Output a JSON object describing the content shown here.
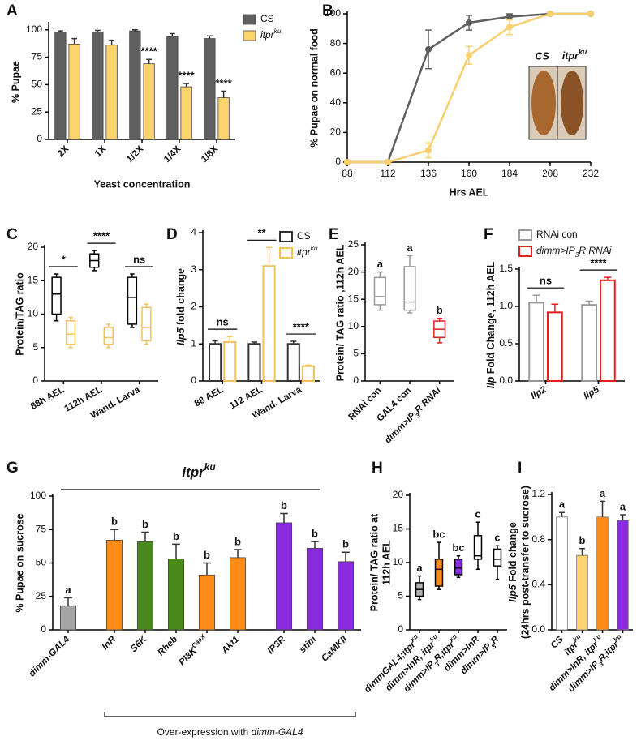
{
  "chart_data": [
    {
      "type": "bar",
      "panel": "A",
      "ylabel": [
        "% Pupae"
      ],
      "xlabel": "Yeast concentration",
      "categories": [
        "2X",
        "1X",
        "1/2X",
        "1/4X",
        "1/8X"
      ],
      "series": [
        {
          "name": "CS",
          "color": "#5f5f5f",
          "values": [
            98,
            98,
            99,
            94,
            92
          ],
          "errors": [
            1,
            1.5,
            1,
            2.5,
            2.5
          ]
        },
        {
          "name": [
            {
              "text": "itpr",
              "italic": true
            },
            {
              "text": "ku",
              "italic": true,
              "sup": true
            }
          ],
          "color": "#fbd46d",
          "values": [
            87,
            86,
            69,
            48,
            38
          ],
          "errors": [
            5,
            4.5,
            4,
            3,
            6
          ]
        }
      ],
      "sig_labels": [
        null,
        null,
        "****",
        "****",
        "****"
      ],
      "ylim": [
        0,
        105
      ],
      "yticks": [
        0,
        25,
        50,
        75,
        100
      ],
      "bar_style": "filled",
      "legend": "top-right"
    },
    {
      "type": "line",
      "panel": "B",
      "ylabel": [
        "% Pupae on normal food"
      ],
      "xlabel": "Hrs AEL",
      "x": [
        88,
        112,
        136,
        160,
        184,
        208,
        232
      ],
      "series": [
        {
          "color": "#5f5f5f",
          "values": [
            0,
            0,
            76,
            94,
            98,
            100,
            100
          ],
          "errors": [
            0,
            0,
            13,
            5,
            2,
            1,
            0
          ]
        },
        {
          "color": "#f8d070",
          "values": [
            0,
            0,
            8,
            72,
            91,
            100,
            100
          ],
          "errors": [
            0,
            0,
            5,
            6,
            5,
            1,
            0
          ]
        }
      ],
      "xlim": [
        88,
        232
      ],
      "xticks": [
        88,
        112,
        136,
        160,
        184,
        208,
        232
      ],
      "ylim": [
        0,
        100
      ],
      "yticks": [
        0,
        20,
        40,
        60,
        80,
        100
      ],
      "inset_labels": [
        "CS",
        [
          {
            "text": "itpr",
            "italic": true
          },
          {
            "text": "ku",
            "italic": true,
            "sup": true
          }
        ]
      ]
    },
    {
      "type": "box",
      "panel": "C",
      "ylabel": [
        "Protein/TAG ratio"
      ],
      "categories": [
        "88h AEL",
        "112h AEL",
        "Wand. Larva"
      ],
      "series": [
        {
          "color": "#000000",
          "boxes": [
            [
              9,
              10,
              13,
              15.5,
              16
            ],
            [
              16.5,
              17,
              18,
              19,
              19.5
            ],
            [
              8,
              8.5,
              12.5,
              15.5,
              16
            ]
          ]
        },
        {
          "color": "#f5c25e",
          "boxes": [
            [
              5,
              5.5,
              7,
              9,
              9.5
            ],
            [
              5,
              5.5,
              6.5,
              8,
              8.5
            ],
            [
              5.5,
              6,
              8,
              11,
              11.5
            ]
          ]
        }
      ],
      "sig_labels": [
        "*",
        "****",
        "ns"
      ],
      "sig_line": true,
      "ylim": [
        0,
        20
      ],
      "yticks": [
        0,
        5,
        10,
        15,
        20
      ]
    },
    {
      "type": "bar",
      "panel": "D",
      "ylabel": [
        [
          {
            "text": "Ilp5",
            "italic": true
          },
          {
            "text": " fold change"
          }
        ]
      ],
      "categories": [
        "88 AEL",
        "112 AEL",
        "Wand. Larva"
      ],
      "series": [
        {
          "name": "CS",
          "color": "#333333",
          "values": [
            1,
            1,
            1
          ],
          "errors": [
            0.08,
            0.05,
            0.07
          ]
        },
        {
          "name": [
            {
              "text": "itpr",
              "italic": true
            },
            {
              "text": "ku",
              "italic": true,
              "sup": true
            }
          ],
          "color": "#f5c060",
          "values": [
            1.05,
            3.1,
            0.4
          ],
          "errors": [
            0.15,
            0.5,
            0.03
          ]
        }
      ],
      "sig_labels": [
        "ns",
        "**",
        "****"
      ],
      "sig_line": true,
      "ylim": [
        0,
        4
      ],
      "yticks": [
        0,
        1,
        2,
        3,
        4
      ],
      "bar_style": "outline",
      "legend": "top-right"
    },
    {
      "type": "box",
      "panel": "E",
      "ylabel": [
        "Protein/ TAG ratio ,112h AEL"
      ],
      "categories": [
        "RNAi con",
        "GAL4 con",
        [
          {
            "text": "dimm>IP",
            "italic": true
          },
          {
            "text": "3",
            "italic": true,
            "sub": true
          },
          {
            "text": "R RNAi",
            "italic": true
          }
        ]
      ],
      "series": [
        {
          "colors": [
            "#999999",
            "#999999",
            "#e3201b"
          ],
          "boxes": [
            [
              13,
              14,
              15.5,
              19,
              20
            ],
            [
              12.5,
              13,
              14.5,
              21,
              23
            ],
            [
              7,
              8,
              9.5,
              11,
              11.5
            ]
          ]
        }
      ],
      "sig_labels": [
        "a",
        "a",
        "b"
      ],
      "ylim": [
        0,
        25
      ],
      "yticks": [
        0,
        5,
        10,
        15,
        20,
        25
      ]
    },
    {
      "type": "bar",
      "panel": "F",
      "ylabel": [
        [
          {
            "text": "Ilp",
            "italic": true
          },
          {
            "text": " Fold Change, 112h AEL"
          }
        ]
      ],
      "categories": [
        [
          {
            "text": "Ilp2",
            "italic": true
          }
        ],
        [
          {
            "text": "Ilp5",
            "italic": true
          }
        ]
      ],
      "series": [
        {
          "name": "RNAi con",
          "color": "#9a9a9a",
          "values": [
            1.05,
            1.02
          ],
          "errors": [
            0.1,
            0.05
          ]
        },
        {
          "name": [
            {
              "text": "dimm>IP",
              "italic": true
            },
            {
              "text": "3",
              "italic": true,
              "sub": true
            },
            {
              "text": "R RNAi",
              "italic": true
            }
          ],
          "color": "#e3201b",
          "values": [
            0.92,
            1.35
          ],
          "errors": [
            0.11,
            0.04
          ]
        }
      ],
      "sig_labels": [
        "ns",
        "****"
      ],
      "sig_line": true,
      "ylim": [
        0,
        1.5
      ],
      "yticks": [
        {
          "value": 0,
          "label": "0.0"
        },
        {
          "value": 0.5,
          "label": "0.5"
        },
        {
          "value": 1,
          "label": "1.0"
        },
        {
          "value": 1.5,
          "label": "1.5"
        }
      ],
      "bar_style": "outline",
      "legend": "top"
    },
    {
      "type": "bar",
      "panel": "G",
      "ylabel": [
        "% Pupae on sucrose"
      ],
      "group_title": [
        {
          "text": "itpr",
          "italic": true
        },
        {
          "text": "ku",
          "italic": true,
          "sup": true
        }
      ],
      "xnote": [
        {
          "text": "Over-expression with "
        },
        {
          "text": "dimm-GAL4",
          "italic": true
        }
      ],
      "categories": [
        [
          {
            "text": "dimm-GAL4",
            "italic": true
          }
        ],
        [
          {
            "text": "InR",
            "italic": true
          }
        ],
        [
          {
            "text": "S6K",
            "italic": true
          }
        ],
        [
          {
            "text": "Rheb",
            "italic": true
          }
        ],
        [
          {
            "text": "PI3K",
            "italic": true
          },
          {
            "text": "CaaX",
            "italic": true,
            "sup": true
          }
        ],
        [
          {
            "text": "Akt1",
            "italic": true
          }
        ],
        [
          {
            "text": "IP3R",
            "italic": true
          }
        ],
        [
          {
            "text": "stim",
            "italic": true
          }
        ],
        [
          {
            "text": "CaMKII",
            "italic": true
          }
        ]
      ],
      "series": [
        {
          "colors": [
            "#a6a6a6",
            "#ff8c1a",
            "#4a8a1c",
            "#4a8a1c",
            "#ff8c1a",
            "#ff8c1a",
            "#8a2be2",
            "#8a2be2",
            "#8a2be2"
          ],
          "values": [
            18,
            67,
            66,
            53,
            41,
            54,
            80,
            61,
            51
          ],
          "errors": [
            6,
            8,
            7,
            11,
            9,
            6,
            7,
            5,
            7
          ]
        }
      ],
      "sig_labels": [
        "a",
        "b",
        "b",
        "b",
        "b",
        "b",
        "b",
        "b",
        "b"
      ],
      "ylim": [
        0,
        100
      ],
      "yticks": [
        0,
        25,
        50,
        75,
        100
      ],
      "bar_style": "filled"
    },
    {
      "type": "box",
      "panel": "H",
      "ylabel": [
        "Protein/ TAG ratio at",
        "112h AEL"
      ],
      "categories": [
        [
          {
            "text": "dimmGAL4;itpr",
            "italic": true
          },
          {
            "text": "ku",
            "italic": true,
            "sup": true
          }
        ],
        [
          {
            "text": "dimm>InR, itpr",
            "italic": true
          },
          {
            "text": "ku",
            "italic": true,
            "sup": true
          }
        ],
        [
          {
            "text": "dimm>IP",
            "italic": true
          },
          {
            "text": "3",
            "italic": true,
            "sub": true
          },
          {
            "text": "R,itpr",
            "italic": true
          },
          {
            "text": "ku",
            "italic": true,
            "sup": true
          }
        ],
        [
          {
            "text": "dimm>InR",
            "italic": true
          }
        ],
        [
          {
            "text": "dimm>IP",
            "italic": true
          },
          {
            "text": "3",
            "italic": true,
            "sub": true
          },
          {
            "text": "R",
            "italic": true
          }
        ]
      ],
      "series": [
        {
          "color": "#000000",
          "fills": [
            "#b3b3b3",
            "#ff8c1a",
            "#8a2be2",
            "#ffffff",
            "#ffffff"
          ],
          "boxes": [
            [
              4.5,
              5,
              6,
              7,
              8
            ],
            [
              6,
              6.5,
              9,
              10.5,
              13
            ],
            [
              7.8,
              8.2,
              9.2,
              10.5,
              11
            ],
            [
              9,
              10.5,
              11,
              14,
              16
            ],
            [
              7.5,
              9.5,
              10.5,
              12,
              12.5
            ]
          ]
        }
      ],
      "sig_labels": [
        "a",
        "bc",
        "bc",
        "c",
        "c"
      ],
      "ylim": [
        0,
        20
      ],
      "yticks": [
        0,
        5,
        10,
        15,
        20
      ]
    },
    {
      "type": "bar",
      "panel": "I",
      "ylabel": [
        [
          {
            "text": "Ilp5",
            "italic": true
          },
          {
            "text": " Fold change"
          }
        ],
        "(24hrs post-transfer to sucrose)"
      ],
      "categories": [
        "CS",
        [
          {
            "text": "itpr",
            "italic": true
          },
          {
            "text": "ku",
            "italic": true,
            "sup": true
          }
        ],
        [
          {
            "text": "dimm>InR, itpr",
            "italic": true
          },
          {
            "text": "ku",
            "italic": true,
            "sup": true
          }
        ],
        [
          {
            "text": "dimm>IP",
            "italic": true
          },
          {
            "text": "3",
            "italic": true,
            "sub": true
          },
          {
            "text": "R,itpr",
            "italic": true
          },
          {
            "text": "ku",
            "italic": true,
            "sup": true
          }
        ]
      ],
      "series": [
        {
          "colors": [
            "#ffffff",
            "#fbd46d",
            "#ff8c1a",
            "#8a2be2"
          ],
          "stroke": "#777777",
          "values": [
            1.0,
            0.66,
            1.0,
            0.97
          ],
          "errors": [
            0.04,
            0.06,
            0.14,
            0.05
          ]
        }
      ],
      "sig_labels": [
        "a",
        "b",
        "a",
        "a"
      ],
      "ylim": [
        0,
        1.2
      ],
      "yticks": [
        {
          "value": 0,
          "label": "0.0"
        },
        {
          "value": 0.4,
          "label": "0.4"
        },
        {
          "value": 0.8,
          "label": "0.8"
        },
        {
          "value": 1.2,
          "label": "1.2"
        }
      ],
      "bar_style": "filled"
    }
  ]
}
